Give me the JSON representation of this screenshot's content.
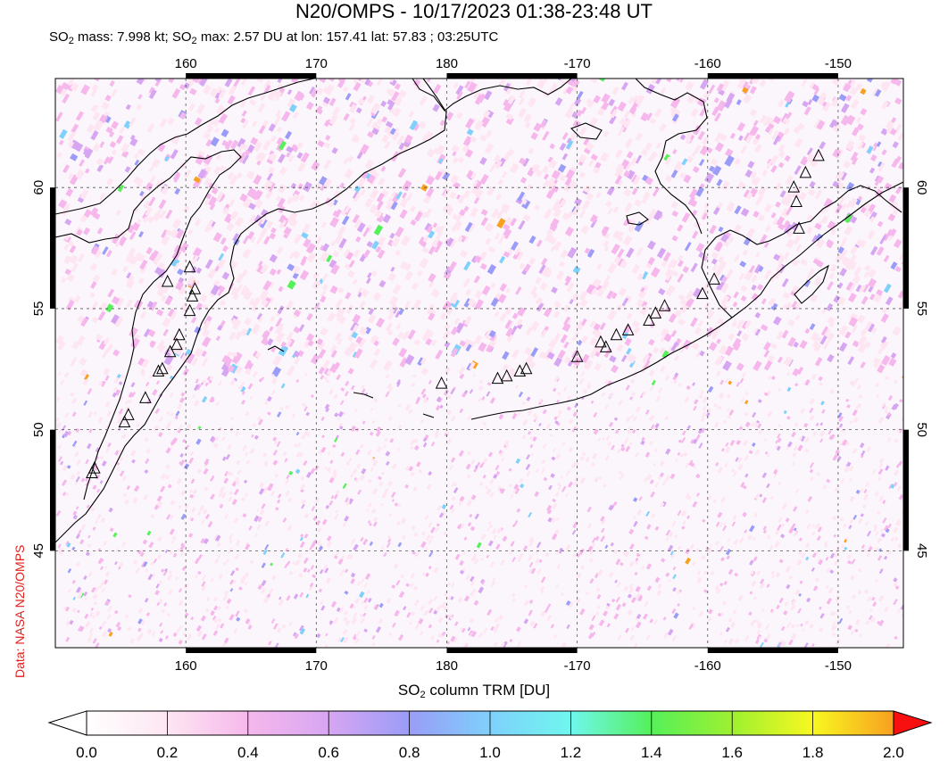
{
  "header": {
    "title": "N20/OMPS - 10/17/2023 01:38-23:48 UT",
    "subtitle_parts": {
      "a": "SO",
      "sub1": "2",
      "b": " mass: 7.998 kt; SO",
      "sub2": "2",
      "c": " max: 2.57 DU at lon: 157.41 lat: 57.83 ; 03:25UTC"
    }
  },
  "credit": "Data: NASA N20/OMPS",
  "map": {
    "lon_ticks": [
      "160",
      "170",
      "180",
      "-170",
      "-160",
      "-150"
    ],
    "lat_ticks": [
      "60",
      "55",
      "50",
      "45"
    ],
    "extent": {
      "lon_min": 150,
      "lon_max": 215,
      "lat_min": 41,
      "lat_max": 64.5
    },
    "volcano_markers": [
      {
        "lon": 158.6,
        "lat": 56.1
      },
      {
        "lon": 160.3,
        "lat": 56.7
      },
      {
        "lon": 160.7,
        "lat": 55.8
      },
      {
        "lon": 160.5,
        "lat": 55.5
      },
      {
        "lon": 160.3,
        "lat": 54.9
      },
      {
        "lon": 159.5,
        "lat": 53.9
      },
      {
        "lon": 159.3,
        "lat": 53.5
      },
      {
        "lon": 158.8,
        "lat": 53.2
      },
      {
        "lon": 158.2,
        "lat": 52.5
      },
      {
        "lon": 157.9,
        "lat": 52.4
      },
      {
        "lon": 156.9,
        "lat": 51.3
      },
      {
        "lon": 155.6,
        "lat": 50.6
      },
      {
        "lon": 155.3,
        "lat": 50.3
      },
      {
        "lon": 153.0,
        "lat": 48.4
      },
      {
        "lon": 152.8,
        "lat": 48.2
      },
      {
        "lon": 179.6,
        "lat": 51.9
      },
      {
        "lon": 183.9,
        "lat": 52.1
      },
      {
        "lon": 184.6,
        "lat": 52.2
      },
      {
        "lon": 185.6,
        "lat": 52.4
      },
      {
        "lon": 186.1,
        "lat": 52.5
      },
      {
        "lon": 190.0,
        "lat": 53.0
      },
      {
        "lon": 191.8,
        "lat": 53.6
      },
      {
        "lon": 192.2,
        "lat": 53.4
      },
      {
        "lon": 193.0,
        "lat": 53.9
      },
      {
        "lon": 193.9,
        "lat": 54.1
      },
      {
        "lon": 195.5,
        "lat": 54.5
      },
      {
        "lon": 196.0,
        "lat": 54.8
      },
      {
        "lon": 196.7,
        "lat": 55.1
      },
      {
        "lon": 199.6,
        "lat": 55.6
      },
      {
        "lon": 200.5,
        "lat": 56.2
      },
      {
        "lon": 207.0,
        "lat": 58.3
      },
      {
        "lon": 206.8,
        "lat": 59.4
      },
      {
        "lon": 206.6,
        "lat": 60.0
      },
      {
        "lon": 207.5,
        "lat": 60.6
      },
      {
        "lon": 208.5,
        "lat": 61.3
      }
    ]
  },
  "colorbar": {
    "title_main": "SO",
    "title_sub": "2",
    "title_rest": " column TRM [DU]",
    "ticks": [
      "0.0",
      "0.2",
      "0.4",
      "0.6",
      "0.8",
      "1.0",
      "1.2",
      "1.4",
      "1.6",
      "1.8",
      "2.0"
    ],
    "colors": [
      "#ffffff",
      "#fde6f2",
      "#f6b8ec",
      "#d7a6f2",
      "#9a9cf7",
      "#7fd0fb",
      "#6ff7ee",
      "#55f05a",
      "#9ef030",
      "#f8f820",
      "#f8a020",
      "#f81010"
    ]
  }
}
